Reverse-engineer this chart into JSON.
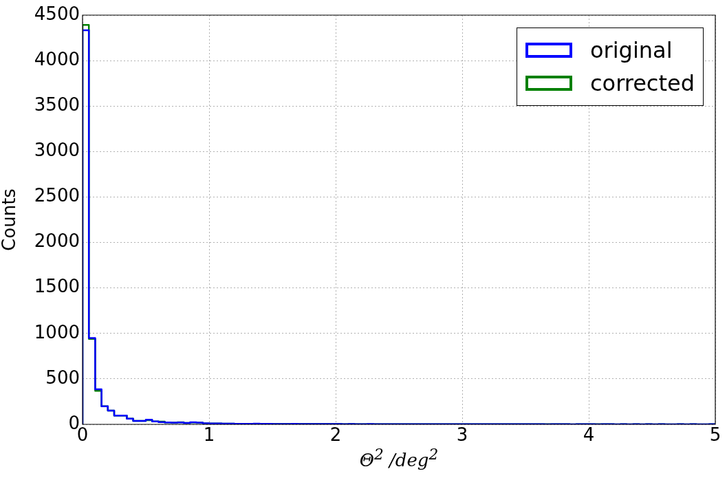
{
  "chart_data": {
    "type": "histogram",
    "xlabel": "Θ$^{2}$ /deg$^{2}$",
    "ylabel": "Counts",
    "bins": [
      0,
      0.05,
      0.1,
      0.15,
      0.2,
      0.25,
      0.3,
      0.35,
      0.4,
      0.45,
      0.5,
      0.55,
      0.6,
      0.65,
      0.7,
      0.75,
      0.8,
      0.85,
      0.9,
      0.95,
      1,
      1.05,
      1.1,
      1.15,
      1.2,
      1.25,
      1.3,
      1.35,
      1.4,
      1.45,
      1.5,
      1.55,
      1.6,
      1.65,
      1.7,
      1.75,
      1.8,
      1.85,
      1.9,
      1.95,
      2,
      2.05,
      2.1,
      2.15,
      2.2,
      2.25,
      2.3,
      2.35,
      2.4,
      2.45,
      2.5,
      2.55,
      2.6,
      2.65,
      2.7,
      2.75,
      2.8,
      2.85,
      2.9,
      2.95,
      3,
      3.05,
      3.1,
      3.15,
      3.2,
      3.25,
      3.3,
      3.35,
      3.4,
      3.45,
      3.5,
      3.55,
      3.6,
      3.65,
      3.7,
      3.75,
      3.8,
      3.85,
      3.9,
      3.95,
      4,
      4.05,
      4.1,
      4.15,
      4.2,
      4.25,
      4.3,
      4.35,
      4.4,
      4.45,
      4.5,
      4.55,
      4.6,
      4.65,
      4.7,
      4.75,
      4.8,
      4.85,
      4.9,
      4.95,
      5
    ],
    "series": [
      {
        "name": "original",
        "color": "#0000ff",
        "values": [
          4333,
          949,
          386,
          198,
          152,
          96,
          96,
          63,
          38,
          38,
          51,
          33,
          25,
          20,
          18,
          20,
          15,
          22,
          18,
          12,
          10,
          10,
          8,
          8,
          6,
          6,
          5,
          7,
          5,
          5,
          4,
          4,
          3,
          5,
          4,
          3,
          3,
          4,
          3,
          3,
          3,
          2,
          3,
          2,
          2,
          3,
          2,
          2,
          2,
          2,
          2,
          2,
          1,
          2,
          2,
          1,
          2,
          1,
          1,
          2,
          1,
          1,
          1,
          1,
          2,
          1,
          1,
          1,
          1,
          1,
          1,
          1,
          1,
          0,
          1,
          1,
          1,
          0,
          1,
          1,
          1,
          0,
          1,
          1,
          0,
          1,
          0,
          1,
          0,
          1,
          0,
          1,
          0,
          0,
          1,
          0,
          1,
          0,
          0,
          1
        ]
      },
      {
        "name": "corrected",
        "color": "#008000",
        "values": [
          4393,
          939,
          368,
          198,
          152,
          96,
          96,
          63,
          38,
          38,
          45,
          33,
          30,
          20,
          18,
          22,
          15,
          20,
          18,
          12,
          10,
          9,
          8,
          7,
          6,
          6,
          5,
          6,
          5,
          5,
          4,
          4,
          4,
          5,
          4,
          3,
          3,
          3,
          3,
          3,
          3,
          2,
          3,
          2,
          2,
          2,
          2,
          2,
          2,
          2,
          2,
          1,
          1,
          2,
          2,
          1,
          2,
          1,
          1,
          1,
          1,
          1,
          1,
          1,
          2,
          1,
          1,
          1,
          1,
          1,
          1,
          1,
          1,
          1,
          1,
          1,
          1,
          0,
          1,
          1,
          1,
          1,
          1,
          1,
          0,
          1,
          0,
          1,
          0,
          1,
          0,
          1,
          0,
          0,
          1,
          0,
          1,
          0,
          0,
          1
        ]
      }
    ],
    "xlim": [
      0,
      5
    ],
    "xticks": [
      0,
      1,
      2,
      3,
      4,
      5
    ],
    "ylim": [
      0,
      4500
    ],
    "yticks": [
      0,
      500,
      1000,
      1500,
      2000,
      2500,
      3000,
      3500,
      4000,
      4500
    ],
    "grid": true,
    "legend": "top right"
  }
}
